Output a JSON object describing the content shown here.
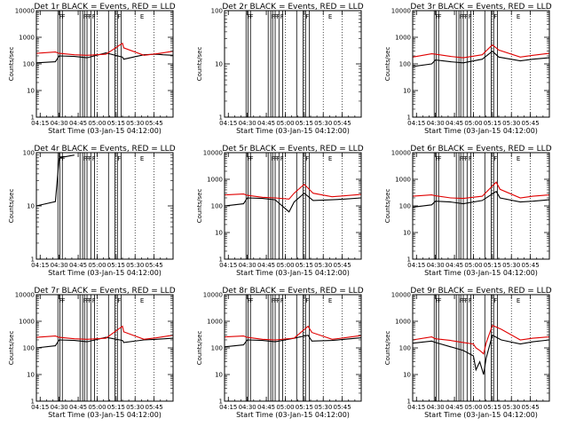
{
  "figure": {
    "panels": [
      {
        "title": "Det 1r BLACK = Events, RED = LLD",
        "ymax_label": "10000"
      },
      {
        "title": "Det 2r BLACK = Events, RED = LLD",
        "ymax_label": "100"
      },
      {
        "title": "Det 3r BLACK = Events, RED = LLD",
        "ymax_label": "10000"
      },
      {
        "title": "Det 4r BLACK = Events, RED = LLD",
        "ymax_label": "100"
      },
      {
        "title": "Det 5r BLACK = Events, RED = LLD",
        "ymax_label": "10000"
      },
      {
        "title": "Det 6r BLACK = Events, RED = LLD",
        "ymax_label": "10000"
      },
      {
        "title": "Det 7r BLACK = Events, RED = LLD",
        "ymax_label": "10000"
      },
      {
        "title": "Det 8r BLACK = Events, RED = LLD",
        "ymax_label": "10000"
      },
      {
        "title": "Det 9r BLACK = Events, RED = LLD",
        "ymax_label": "10000"
      }
    ],
    "xlabel": "Start Time (03-Jan-15 04:12:00)",
    "ylabel": "Counts/sec",
    "xticks": [
      "04:15",
      "04:30",
      "04:45",
      "05:00",
      "05:15",
      "05:30",
      "05:45"
    ],
    "colors": {
      "events": "#000000",
      "lld": "#e00000"
    }
  },
  "chart_data": [
    {
      "type": "line",
      "title": "Det 1r BLACK = Events, RED = LLD",
      "xlabel": "Start Time (03-Jan-15 04:12:00)",
      "ylabel": "Counts/sec",
      "x_minutes_after_start": [
        0,
        15,
        18,
        30,
        40,
        55,
        68,
        69,
        85,
        95,
        100,
        108
      ],
      "x": [
        "04:12",
        "04:27",
        "04:30",
        "04:42",
        "04:52",
        "05:07",
        "05:20",
        "05:21",
        "05:37",
        "05:47",
        "05:52",
        "06:00"
      ],
      "yscale": "log",
      "ylim": [
        1,
        10000
      ],
      "series": [
        {
          "name": "Events",
          "color": "#000000",
          "values": [
            110,
            120,
            200,
            190,
            170,
            260,
            180,
            150,
            220,
            230,
            220,
            210
          ]
        },
        {
          "name": "LLD",
          "color": "#e00000",
          "values": [
            250,
            280,
            250,
            220,
            210,
            230,
            600,
            400,
            210,
            240,
            260,
            300
          ]
        }
      ]
    },
    {
      "type": "line",
      "title": "Det 2r BLACK = Events, RED = LLD",
      "xlabel": "Start Time (03-Jan-15 04:12:00)",
      "ylabel": "Counts/sec",
      "yscale": "log",
      "ylim": [
        1,
        100
      ],
      "series": []
    },
    {
      "type": "line",
      "title": "Det 3r BLACK = Events, RED = LLD",
      "xlabel": "Start Time (03-Jan-15 04:12:00)",
      "ylabel": "Counts/sec",
      "x": [
        "04:12",
        "04:27",
        "04:30",
        "04:42",
        "04:52",
        "05:07",
        "05:15",
        "05:20",
        "05:37",
        "05:47",
        "06:00"
      ],
      "yscale": "log",
      "ylim": [
        1,
        10000
      ],
      "series": [
        {
          "name": "Events",
          "color": "#000000",
          "values": [
            80,
            100,
            140,
            120,
            110,
            150,
            300,
            180,
            130,
            150,
            170
          ]
        },
        {
          "name": "LLD",
          "color": "#e00000",
          "values": [
            180,
            240,
            230,
            190,
            170,
            220,
            520,
            330,
            180,
            210,
            250
          ]
        }
      ]
    },
    {
      "type": "line",
      "title": "Det 4r BLACK = Events, RED = LLD",
      "xlabel": "Start Time (03-Jan-15 04:12:00)",
      "ylabel": "Counts/sec",
      "x": [
        "04:12",
        "04:27",
        "04:30",
        "04:42"
      ],
      "yscale": "log",
      "ylim": [
        1,
        100
      ],
      "series": [
        {
          "name": "Events",
          "color": "#000000",
          "values": [
            10,
            12,
            80,
            90
          ]
        }
      ]
    },
    {
      "type": "line",
      "title": "Det 5r BLACK = Events, RED = LLD",
      "xlabel": "Start Time (03-Jan-15 04:12:00)",
      "ylabel": "Counts/sec",
      "x": [
        "04:12",
        "04:27",
        "04:30",
        "04:42",
        "04:52",
        "05:03",
        "05:07",
        "05:15",
        "05:22",
        "05:37",
        "05:47",
        "06:00"
      ],
      "yscale": "log",
      "ylim": [
        1,
        10000
      ],
      "series": [
        {
          "name": "Events",
          "color": "#000000",
          "values": [
            100,
            120,
            200,
            190,
            170,
            60,
            140,
            300,
            160,
            170,
            180,
            200
          ]
        },
        {
          "name": "LLD",
          "color": "#e00000",
          "values": [
            260,
            280,
            250,
            210,
            200,
            180,
            300,
            650,
            300,
            220,
            240,
            270
          ]
        }
      ]
    },
    {
      "type": "line",
      "title": "Det 6r BLACK = Events, RED = LLD",
      "xlabel": "Start Time (03-Jan-15 04:12:00)",
      "ylabel": "Counts/sec",
      "x": [
        "04:12",
        "04:27",
        "04:30",
        "04:42",
        "04:52",
        "05:07",
        "05:18",
        "05:21",
        "05:37",
        "05:47",
        "06:00"
      ],
      "yscale": "log",
      "ylim": [
        1,
        10000
      ],
      "series": [
        {
          "name": "Events",
          "color": "#000000",
          "values": [
            90,
            110,
            150,
            140,
            120,
            160,
            350,
            200,
            140,
            150,
            170
          ]
        },
        {
          "name": "LLD",
          "color": "#e00000",
          "values": [
            230,
            260,
            240,
            200,
            190,
            230,
            780,
            420,
            200,
            230,
            260
          ]
        }
      ]
    },
    {
      "type": "line",
      "title": "Det 7r BLACK = Events, RED = LLD",
      "xlabel": "Start Time (03-Jan-15 04:12:00)",
      "ylabel": "Counts/sec",
      "x": [
        "04:12",
        "04:27",
        "04:30",
        "04:42",
        "04:52",
        "05:07",
        "05:20",
        "05:21",
        "05:37",
        "05:47",
        "06:00"
      ],
      "yscale": "log",
      "ylim": [
        1,
        10000
      ],
      "series": [
        {
          "name": "Events",
          "color": "#000000",
          "values": [
            100,
            120,
            200,
            190,
            170,
            250,
            190,
            160,
            200,
            210,
            230
          ]
        },
        {
          "name": "LLD",
          "color": "#e00000",
          "values": [
            250,
            280,
            250,
            220,
            210,
            230,
            650,
            400,
            210,
            240,
            300
          ]
        }
      ]
    },
    {
      "type": "line",
      "title": "Det 8r BLACK = Events, RED = LLD",
      "xlabel": "Start Time (03-Jan-15 04:12:00)",
      "ylabel": "Counts/sec",
      "x": [
        "04:12",
        "04:27",
        "04:30",
        "04:42",
        "04:52",
        "05:07",
        "05:18",
        "05:21",
        "05:37",
        "05:47",
        "06:00"
      ],
      "yscale": "log",
      "ylim": [
        1,
        10000
      ],
      "series": [
        {
          "name": "Events",
          "color": "#000000",
          "values": [
            110,
            130,
            200,
            190,
            170,
            230,
            300,
            180,
            190,
            210,
            240
          ]
        },
        {
          "name": "LLD",
          "color": "#e00000",
          "values": [
            260,
            280,
            250,
            210,
            200,
            230,
            650,
            380,
            210,
            240,
            290
          ]
        }
      ]
    },
    {
      "type": "line",
      "title": "Det 9r BLACK = Events, RED = LLD",
      "xlabel": "Start Time (03-Jan-15 04:12:00)",
      "ylabel": "Counts/sec",
      "x": [
        "04:12",
        "04:27",
        "04:30",
        "04:42",
        "04:52",
        "05:00",
        "05:02",
        "05:05",
        "05:08",
        "05:10",
        "05:15",
        "05:22",
        "05:37",
        "05:47",
        "06:00"
      ],
      "yscale": "log",
      "ylim": [
        1,
        10000
      ],
      "series": [
        {
          "name": "Events",
          "color": "#000000",
          "values": [
            150,
            180,
            160,
            110,
            80,
            50,
            15,
            30,
            10,
            40,
            300,
            200,
            140,
            170,
            200
          ]
        },
        {
          "name": "LLD",
          "color": "#e00000",
          "values": [
            200,
            260,
            220,
            190,
            160,
            140,
            100,
            80,
            60,
            150,
            700,
            500,
            200,
            230,
            260
          ]
        }
      ]
    }
  ]
}
